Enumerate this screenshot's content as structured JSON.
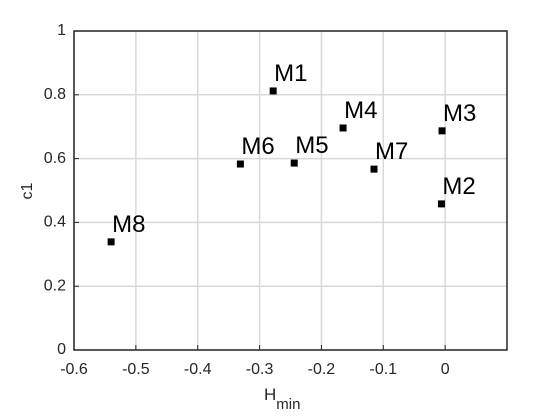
{
  "chart_data": {
    "type": "scatter",
    "xlabel": "H",
    "xlabel_subscript": "min",
    "ylabel": "c1",
    "point_labels": [
      "M1",
      "M2",
      "M3",
      "M4",
      "M5",
      "M6",
      "M7",
      "M8"
    ],
    "x": [
      -0.278,
      -0.006,
      -0.005,
      -0.165,
      -0.244,
      -0.331,
      -0.115,
      -0.54
    ],
    "values": [
      0.812,
      0.458,
      0.687,
      0.696,
      0.586,
      0.583,
      0.567,
      0.339
    ],
    "color": "#000000",
    "xlim": [
      -0.6,
      0.1
    ],
    "xticks": [
      -0.6,
      -0.5,
      -0.4,
      -0.3,
      -0.2,
      -0.1,
      0
    ],
    "ylim": [
      0,
      1
    ],
    "yticks": [
      0,
      0.2,
      0.4,
      0.6,
      0.8,
      1
    ],
    "grid": true
  }
}
